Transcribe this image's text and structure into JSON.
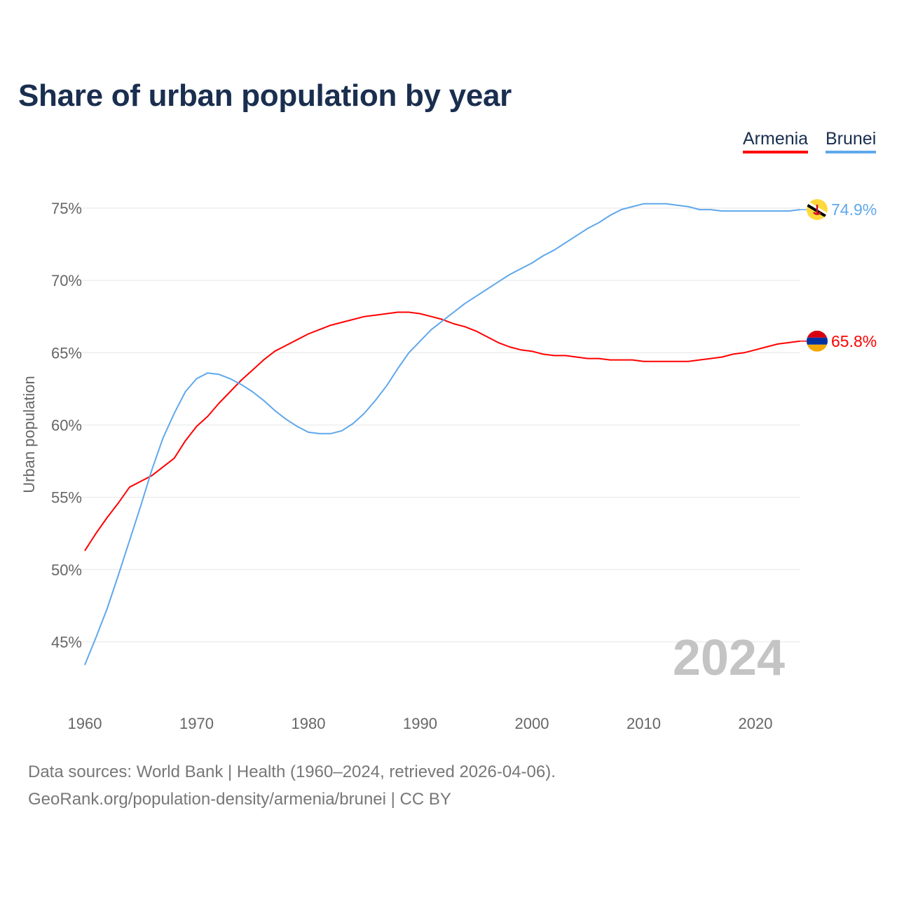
{
  "chart_data": {
    "type": "line",
    "title": "Share of urban population by year",
    "xlabel": "",
    "ylabel": "Urban population",
    "xlim": [
      1960,
      2024
    ],
    "ylim": [
      42.5,
      77
    ],
    "x_ticks": [
      "1960",
      "1970",
      "1980",
      "1990",
      "2000",
      "2010",
      "2020"
    ],
    "y_ticks": [
      {
        "v": 45,
        "label": "45%"
      },
      {
        "v": 50,
        "label": "50%"
      },
      {
        "v": 55,
        "label": "55%"
      },
      {
        "v": 60,
        "label": "60%"
      },
      {
        "v": 65,
        "label": "65%"
      },
      {
        "v": 70,
        "label": "70%"
      },
      {
        "v": 75,
        "label": "75%"
      }
    ],
    "grid": true,
    "legend_placement": "top-right",
    "year_watermark": "2024",
    "x": [
      1960,
      1961,
      1962,
      1963,
      1964,
      1965,
      1966,
      1967,
      1968,
      1969,
      1970,
      1971,
      1972,
      1973,
      1974,
      1975,
      1976,
      1977,
      1978,
      1979,
      1980,
      1981,
      1982,
      1983,
      1984,
      1985,
      1986,
      1987,
      1988,
      1989,
      1990,
      1991,
      1992,
      1993,
      1994,
      1995,
      1996,
      1997,
      1998,
      1999,
      2000,
      2001,
      2002,
      2003,
      2004,
      2005,
      2006,
      2007,
      2008,
      2009,
      2010,
      2011,
      2012,
      2013,
      2014,
      2015,
      2016,
      2017,
      2018,
      2019,
      2020,
      2021,
      2022,
      2023,
      2024
    ],
    "series": [
      {
        "name": "Armenia",
        "color": "#ff0000",
        "end_label": "65.8%",
        "flag": "armenia-flag",
        "values": [
          51.3,
          52.5,
          53.6,
          54.6,
          55.7,
          56.1,
          56.5,
          57.1,
          57.7,
          58.9,
          59.9,
          60.6,
          61.5,
          62.3,
          63.1,
          63.8,
          64.5,
          65.1,
          65.5,
          65.9,
          66.3,
          66.6,
          66.9,
          67.1,
          67.3,
          67.5,
          67.6,
          67.7,
          67.8,
          67.8,
          67.7,
          67.5,
          67.3,
          67.0,
          66.8,
          66.5,
          66.1,
          65.7,
          65.4,
          65.2,
          65.1,
          64.9,
          64.8,
          64.8,
          64.7,
          64.6,
          64.6,
          64.5,
          64.5,
          64.5,
          64.4,
          64.4,
          64.4,
          64.4,
          64.4,
          64.5,
          64.6,
          64.7,
          64.9,
          65.0,
          65.2,
          65.4,
          65.6,
          65.7,
          65.8
        ]
      },
      {
        "name": "Brunei",
        "color": "#5fa8eb",
        "end_label": "74.9%",
        "flag": "brunei-flag",
        "values": [
          43.4,
          45.3,
          47.3,
          49.6,
          52.0,
          54.4,
          56.9,
          59.1,
          60.8,
          62.3,
          63.2,
          63.6,
          63.5,
          63.2,
          62.8,
          62.3,
          61.7,
          61.0,
          60.4,
          59.9,
          59.5,
          59.4,
          59.4,
          59.6,
          60.1,
          60.8,
          61.7,
          62.7,
          63.9,
          65.0,
          65.8,
          66.6,
          67.2,
          67.8,
          68.4,
          68.9,
          69.4,
          69.9,
          70.4,
          70.8,
          71.2,
          71.7,
          72.1,
          72.6,
          73.1,
          73.6,
          74.0,
          74.5,
          74.9,
          75.1,
          75.3,
          75.3,
          75.3,
          75.2,
          75.1,
          74.9,
          74.9,
          74.8,
          74.8,
          74.8,
          74.8,
          74.8,
          74.8,
          74.8,
          74.9
        ]
      }
    ]
  },
  "footer": {
    "sources": "Data sources: World Bank | Health (1960–2024, retrieved 2026-04-06).",
    "credit": "GeoRank.org/population-density/armenia/brunei | CC BY"
  }
}
